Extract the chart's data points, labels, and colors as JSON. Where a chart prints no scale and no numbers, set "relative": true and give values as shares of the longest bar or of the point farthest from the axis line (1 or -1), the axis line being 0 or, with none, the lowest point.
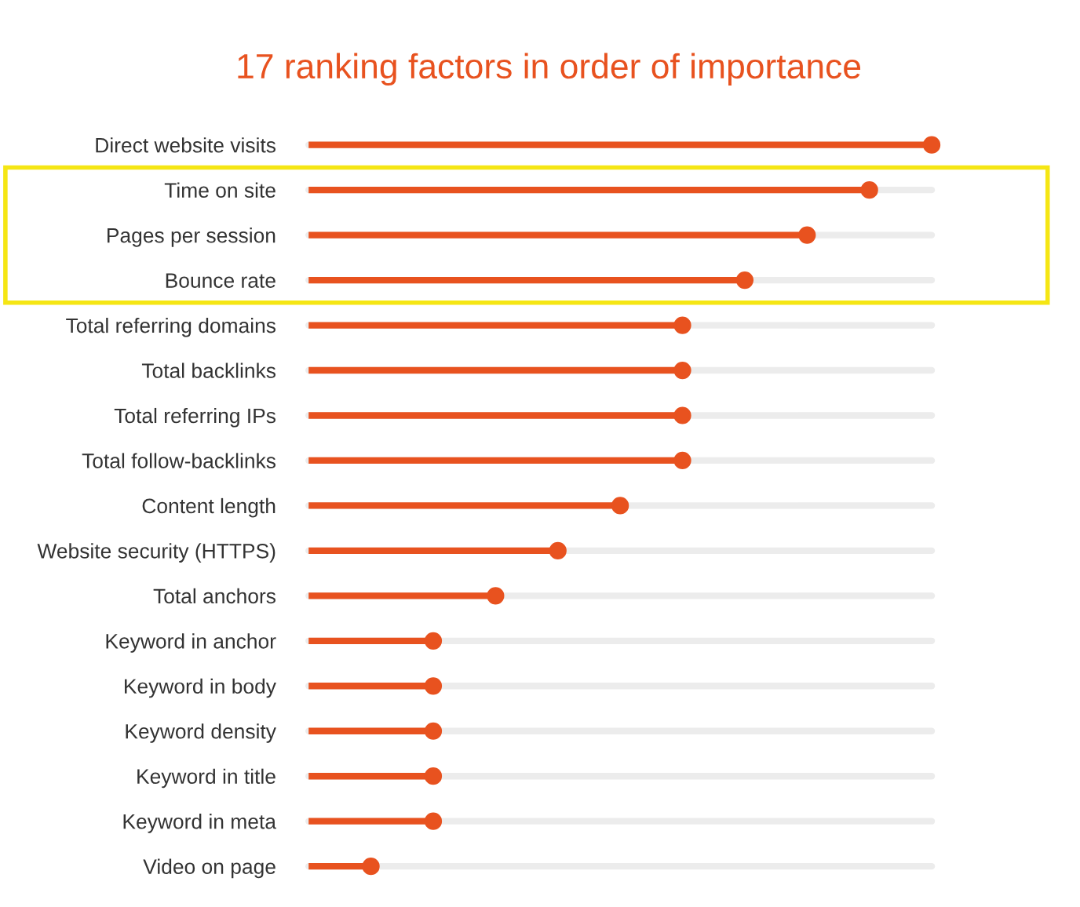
{
  "chart_data": {
    "type": "lollipop",
    "orientation": "horizontal",
    "relative": true,
    "title": "17 ranking factors in order of importance",
    "categories": [
      "Direct website visits",
      "Time on site",
      "Pages per session",
      "Bounce rate",
      "Total referring domains",
      "Total backlinks",
      "Total referring IPs",
      "Total follow-backlinks",
      "Content length",
      "Website security (HTTPS)",
      "Total anchors",
      "Keyword in anchor",
      "Keyword in body",
      "Keyword density",
      "Keyword in title",
      "Keyword in meta",
      "Video on page"
    ],
    "values": [
      1,
      0.9,
      0.8,
      0.7,
      0.6,
      0.6,
      0.6,
      0.6,
      0.5,
      0.4,
      0.3,
      0.2,
      0.2,
      0.2,
      0.2,
      0.2,
      0.1
    ],
    "color": "#e8521f",
    "marker": "circle",
    "grid": "y"
  }
}
